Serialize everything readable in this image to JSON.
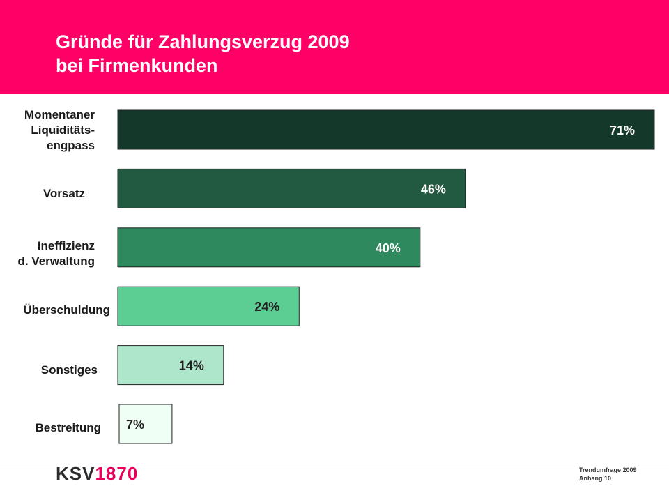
{
  "header": {
    "title_line1": "Gründe für Zahlungsverzug 2009",
    "title_line2": "bei Firmenkunden"
  },
  "colors": {
    "header_bg": "#ff0066",
    "logo_accent": "#e8005a",
    "bar_border": "#222222"
  },
  "chart_data": {
    "type": "bar",
    "orientation": "horizontal",
    "title": "Gründe für Zahlungsverzug 2009 bei Firmenkunden",
    "unit": "%",
    "categories": [
      [
        "Momentaner",
        "Liquiditäts-",
        "engpass"
      ],
      [
        "Vorsatz"
      ],
      [
        "Ineffizienz",
        "d. Verwaltung"
      ],
      [
        "Überschuldung"
      ],
      [
        "Sonstiges"
      ],
      [
        "Bestreitung"
      ]
    ],
    "values": [
      71,
      46,
      40,
      24,
      14,
      7
    ],
    "value_labels": [
      "71%",
      "46%",
      "40%",
      "24%",
      "14%",
      "7%"
    ],
    "bar_colors": [
      "#14382a",
      "#215a41",
      "#2e8a5e",
      "#5ccd93",
      "#ade6cb",
      "#f0fff5"
    ],
    "label_colors": [
      "#ffffff",
      "#ffffff",
      "#ffffff",
      "#222222",
      "#222222",
      "#222222"
    ],
    "xlim": [
      0,
      71
    ],
    "grid": false,
    "legend": "none"
  },
  "footer": {
    "logo_text": "KSV",
    "logo_year": "1870",
    "note_line1": "Trendumfrage 2009",
    "note_line2": "Anhang 10"
  }
}
